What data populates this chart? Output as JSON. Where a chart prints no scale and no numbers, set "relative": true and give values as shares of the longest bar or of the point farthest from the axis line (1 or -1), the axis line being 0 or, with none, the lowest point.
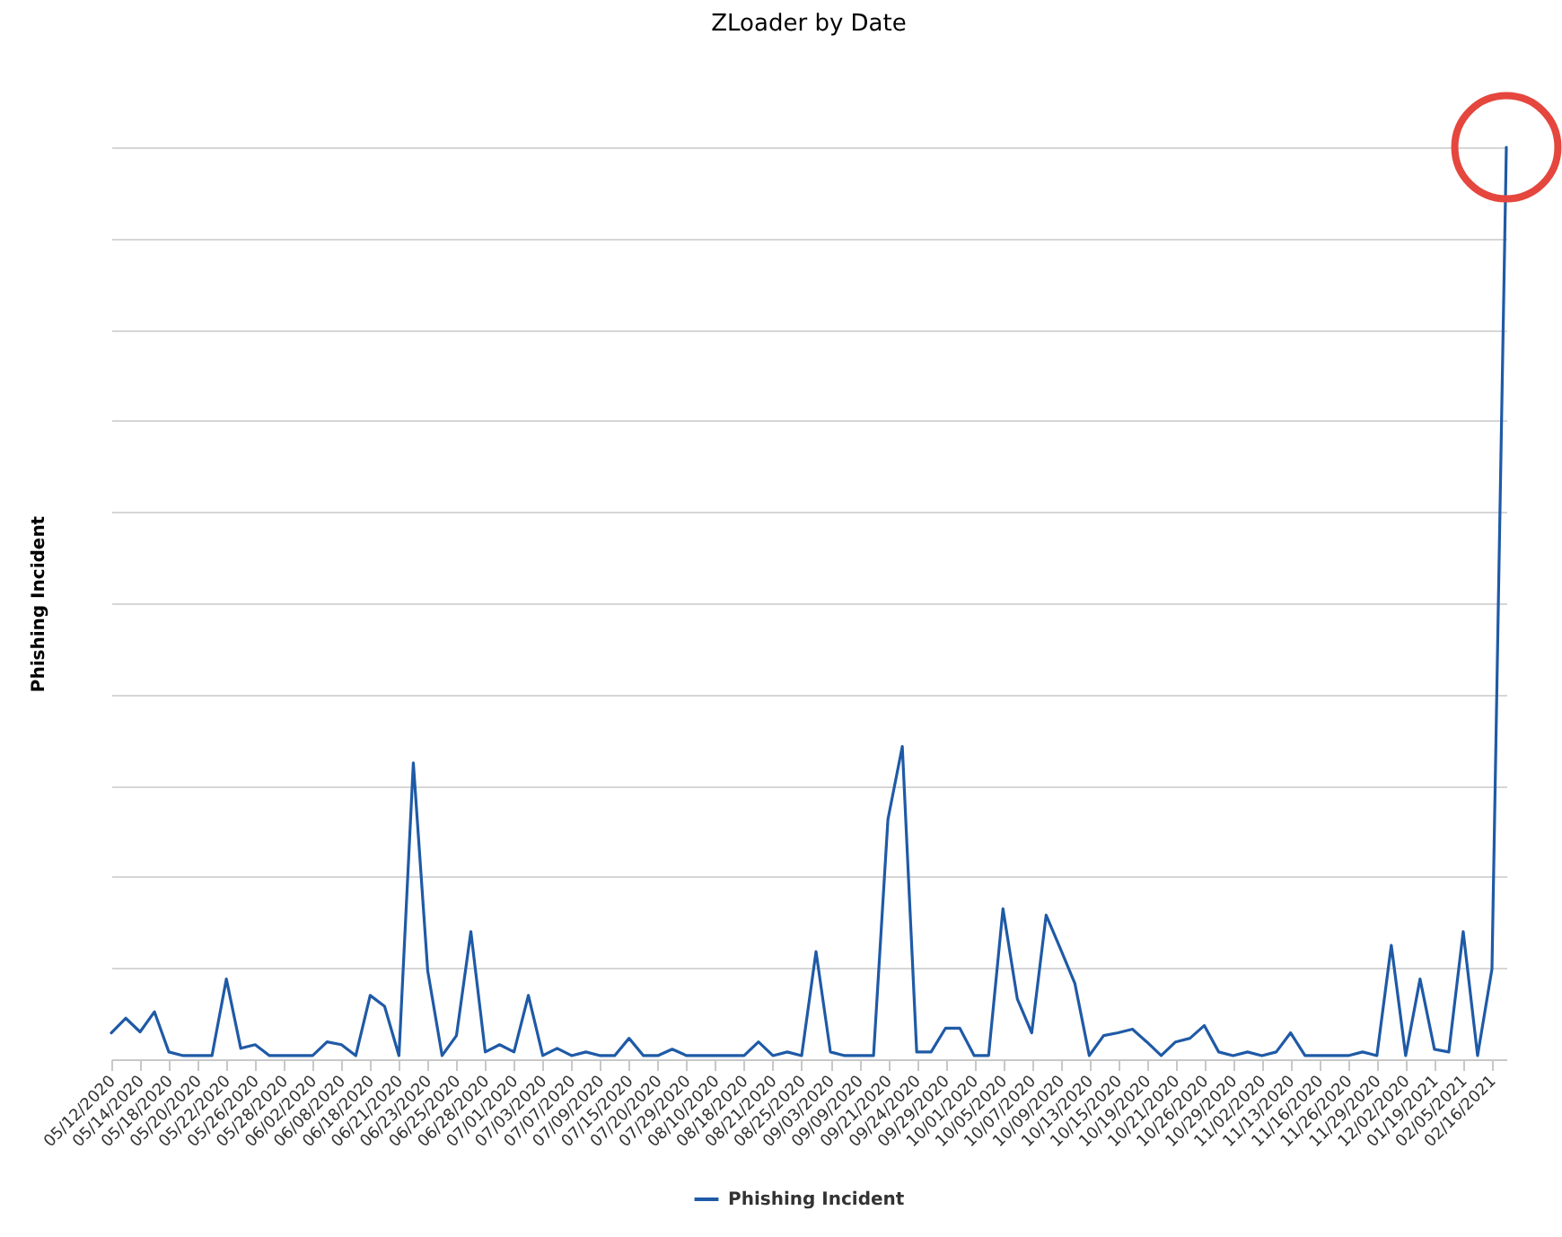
{
  "chart_data": {
    "type": "line",
    "title": "ZLoader by Date",
    "ylabel": "Phishing Incident",
    "relative": true,
    "categories": [
      "05/12/2020",
      null,
      "05/14/2020",
      null,
      "05/18/2020",
      null,
      "05/20/2020",
      null,
      "05/22/2020",
      null,
      "05/26/2020",
      null,
      "05/28/2020",
      null,
      "06/02/2020",
      null,
      "06/08/2020",
      null,
      "06/18/2020",
      null,
      "06/21/2020",
      null,
      "06/23/2020",
      null,
      "06/25/2020",
      null,
      "06/28/2020",
      null,
      "07/01/2020",
      null,
      "07/03/2020",
      null,
      "07/07/2020",
      null,
      "07/09/2020",
      null,
      "07/15/2020",
      null,
      "07/20/2020",
      null,
      "07/29/2020",
      null,
      "08/10/2020",
      null,
      "08/18/2020",
      null,
      "08/21/2020",
      null,
      "08/25/2020",
      null,
      "09/03/2020",
      null,
      "09/09/2020",
      null,
      "09/21/2020",
      null,
      "09/24/2020",
      null,
      "09/29/2020",
      null,
      "10/01/2020",
      null,
      "10/05/2020",
      null,
      "10/07/2020",
      null,
      "10/09/2020",
      null,
      "10/13/2020",
      null,
      "10/15/2020",
      null,
      "10/19/2020",
      null,
      "10/21/2020",
      null,
      "10/26/2020",
      null,
      "10/29/2020",
      null,
      "11/02/2020",
      null,
      "11/13/2020",
      null,
      "11/16/2020",
      null,
      "11/26/2020",
      null,
      "11/29/2020",
      null,
      "12/02/2020",
      null,
      "01/19/2021",
      null,
      "02/05/2021",
      null,
      "02/16/2021",
      null
    ],
    "series": [
      {
        "name": "Phishing Incident",
        "color": "#1f5aa6",
        "values": [
          0.029,
          0.045,
          0.03,
          0.052,
          0.008,
          0.004,
          0.004,
          0.004,
          0.088,
          0.012,
          0.016,
          0.004,
          0.004,
          0.004,
          0.004,
          0.019,
          0.016,
          0.004,
          0.07,
          0.058,
          0.004,
          0.325,
          0.097,
          0.004,
          0.026,
          0.14,
          0.008,
          0.016,
          0.008,
          0.07,
          0.004,
          0.012,
          0.004,
          0.008,
          0.004,
          0.004,
          0.023,
          0.004,
          0.004,
          0.011,
          0.004,
          0.004,
          0.004,
          0.004,
          0.004,
          0.019,
          0.004,
          0.008,
          0.004,
          0.118,
          0.008,
          0.004,
          0.004,
          0.004,
          0.263,
          0.343,
          0.008,
          0.008,
          0.034,
          0.034,
          0.004,
          0.004,
          0.165,
          0.066,
          0.029,
          0.158,
          0.121,
          0.083,
          0.004,
          0.026,
          0.029,
          0.033,
          0.019,
          0.004,
          0.019,
          0.023,
          0.037,
          0.008,
          0.004,
          0.008,
          0.004,
          0.008,
          0.029,
          0.004,
          0.004,
          0.004,
          0.004,
          0.008,
          0.004,
          0.125,
          0.004,
          0.088,
          0.011,
          0.008,
          0.14,
          0.004,
          0.099,
          1
        ]
      }
    ],
    "grid": "y",
    "legend": "bottom",
    "line_style": "solid"
  }
}
